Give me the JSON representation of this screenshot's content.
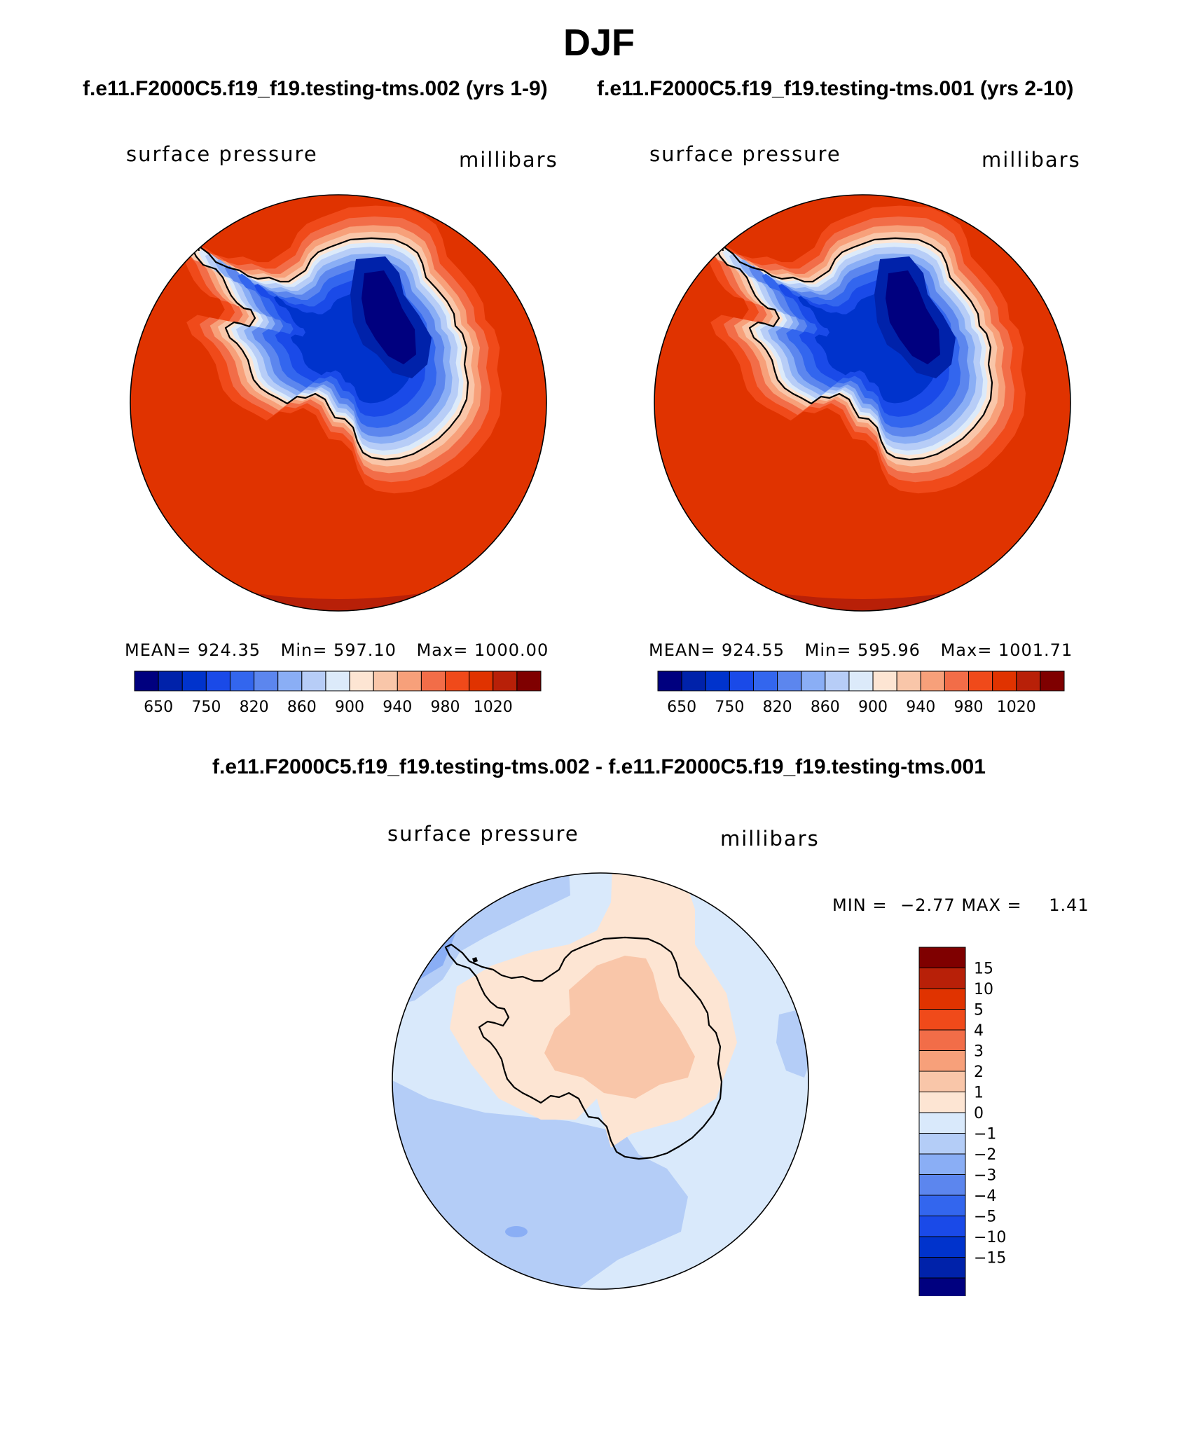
{
  "page": {
    "title": "DJF",
    "case_left": "f.e11.F2000C5.f19_f19.testing-tms.002 (yrs 1-9)",
    "case_right": "f.e11.F2000C5.f19_f19.testing-tms.001 (yrs 2-10)",
    "diff_title": "f.e11.F2000C5.f19_f19.testing-tms.002 - f.e11.F2000C5.f19_f19.testing-tms.001"
  },
  "chart_data": [
    {
      "type": "heatmap",
      "title": "surface pressure",
      "units": "millibars",
      "projection": "south polar stereographic",
      "stats": {
        "mean_label": "MEAN=",
        "mean": "924.35",
        "min_label": "Min=",
        "min": "597.10",
        "max_label": "Max=",
        "max": "1000.00"
      },
      "levels": [
        650,
        700,
        750,
        800,
        820,
        840,
        860,
        880,
        900,
        920,
        940,
        960,
        980,
        1000,
        1020
      ],
      "level_labels": [
        "650",
        "750",
        "820",
        "860",
        "900",
        "940",
        "980",
        "1020"
      ],
      "colors": [
        "#00007f",
        "#0022aa",
        "#0033cc",
        "#1a4ae8",
        "#3366ee",
        "#5c86ee",
        "#8aaef5",
        "#b7cdf7",
        "#dceafa",
        "#fde5d3",
        "#f9c6a9",
        "#f7a07a",
        "#f26d48",
        "#f04a1a",
        "#e03300",
        "#b82008",
        "#7f0000"
      ]
    },
    {
      "type": "heatmap",
      "title": "surface pressure",
      "units": "millibars",
      "projection": "south polar stereographic",
      "stats": {
        "mean_label": "MEAN=",
        "mean": "924.55",
        "min_label": "Min=",
        "min": "595.96",
        "max_label": "Max=",
        "max": "1001.71"
      },
      "levels": [
        650,
        700,
        750,
        800,
        820,
        840,
        860,
        880,
        900,
        920,
        940,
        960,
        980,
        1000,
        1020
      ],
      "level_labels": [
        "650",
        "750",
        "820",
        "860",
        "900",
        "940",
        "980",
        "1020"
      ],
      "colors": [
        "#00007f",
        "#0022aa",
        "#0033cc",
        "#1a4ae8",
        "#3366ee",
        "#5c86ee",
        "#8aaef5",
        "#b7cdf7",
        "#dceafa",
        "#fde5d3",
        "#f9c6a9",
        "#f7a07a",
        "#f26d48",
        "#f04a1a",
        "#e03300",
        "#b82008",
        "#7f0000"
      ]
    },
    {
      "type": "heatmap",
      "title": "surface pressure",
      "units": "millibars",
      "projection": "south polar stereographic",
      "stats": {
        "min_label": "MIN =",
        "min": "−2.77",
        "max_label": "MAX =",
        "max": "1.41"
      },
      "levels": [
        -15,
        -10,
        -5,
        -4,
        -3,
        -2,
        -1,
        0,
        1,
        2,
        3,
        4,
        5,
        10,
        15
      ],
      "level_labels": [
        "15",
        "10",
        "5",
        "4",
        "3",
        "2",
        "1",
        "0",
        "−1",
        "−2",
        "−3",
        "−4",
        "−5",
        "−10",
        "−15"
      ],
      "colors": [
        "#7f0000",
        "#b82008",
        "#e03300",
        "#f04a1a",
        "#f26d48",
        "#f7a07a",
        "#f9c6a9",
        "#fde5d3",
        "#d9e9fb",
        "#b4cdf7",
        "#8aaef5",
        "#5c86ee",
        "#3366ee",
        "#1a4ae8",
        "#0033cc",
        "#0022aa",
        "#00007f"
      ]
    }
  ]
}
